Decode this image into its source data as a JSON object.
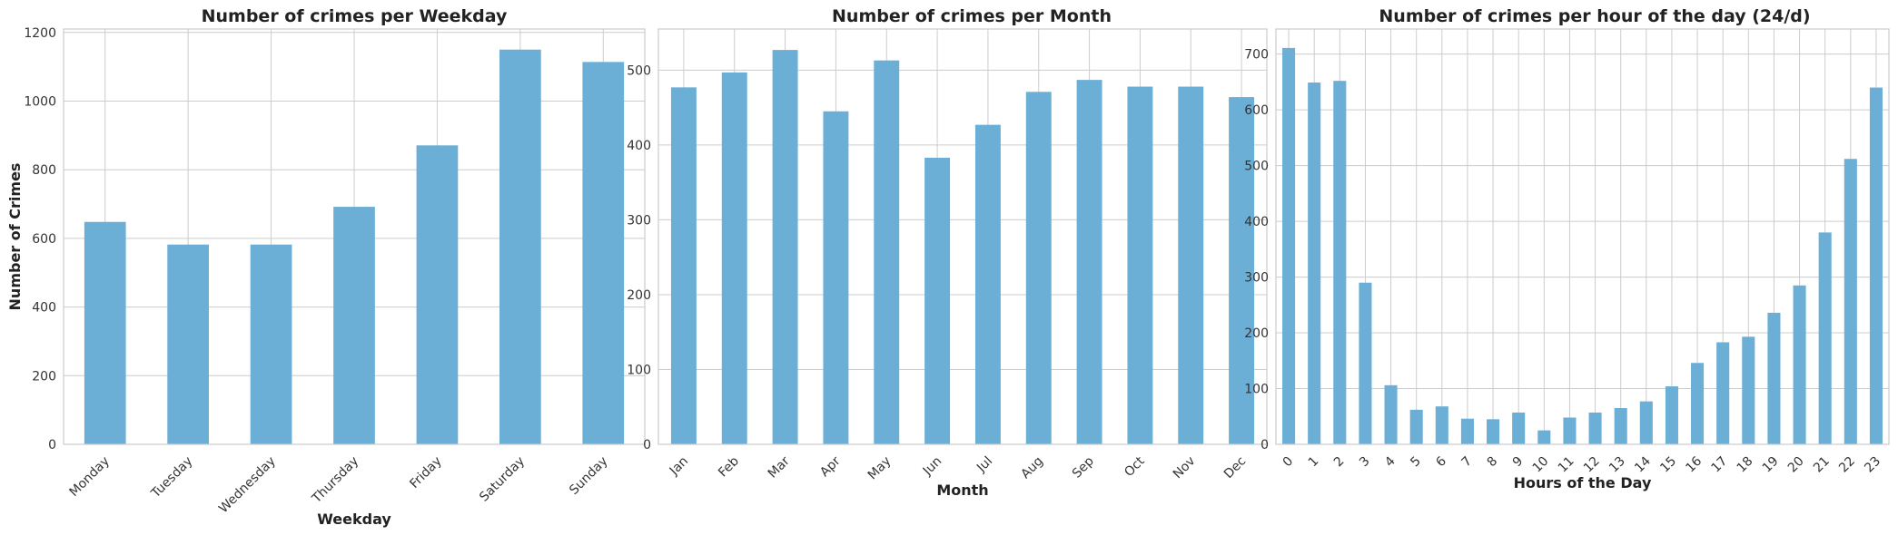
{
  "chart_data": [
    {
      "type": "bar",
      "title": "Number of crimes per Weekday",
      "xlabel": "Weekday",
      "ylabel": "Number of Crimes",
      "categories": [
        "Monday",
        "Tuesday",
        "Wednesday",
        "Thursday",
        "Friday",
        "Saturday",
        "Sunday"
      ],
      "values": [
        648,
        582,
        582,
        692,
        871,
        1150,
        1114
      ],
      "ylim": [
        0,
        1210
      ],
      "yticks": [
        0,
        200,
        400,
        600,
        800,
        1000,
        1200
      ],
      "xtick_rotation": 45,
      "grid": true,
      "bar_color": "#6baed6"
    },
    {
      "type": "bar",
      "title": "Number of crimes per Month",
      "xlabel": "Month",
      "ylabel": "",
      "categories": [
        "Jan",
        "Feb",
        "Mar",
        "Apr",
        "May",
        "Jun",
        "Jul",
        "Aug",
        "Sep",
        "Oct",
        "Nov",
        "Dec"
      ],
      "values": [
        477,
        497,
        527,
        445,
        513,
        383,
        427,
        471,
        487,
        478,
        478,
        464
      ],
      "ylim": [
        0,
        555
      ],
      "yticks": [
        0,
        100,
        200,
        300,
        400,
        500
      ],
      "xtick_rotation": 45,
      "grid": true,
      "bar_color": "#6baed6"
    },
    {
      "type": "bar",
      "title": "Number of crimes per hour of the day (24/d)",
      "xlabel": "Hours of the Day",
      "ylabel": "",
      "categories": [
        "0",
        "1",
        "2",
        "3",
        "4",
        "5",
        "6",
        "7",
        "8",
        "9",
        "10",
        "11",
        "12",
        "13",
        "14",
        "15",
        "16",
        "17",
        "18",
        "19",
        "20",
        "21",
        "22",
        "23"
      ],
      "values": [
        711,
        649,
        652,
        290,
        106,
        62,
        68,
        46,
        45,
        57,
        25,
        48,
        57,
        65,
        77,
        104,
        146,
        183,
        193,
        236,
        285,
        380,
        512,
        640
      ],
      "ylim": [
        0,
        745
      ],
      "yticks": [
        0,
        100,
        200,
        300,
        400,
        500,
        600,
        700
      ],
      "xtick_rotation": 45,
      "grid": true,
      "bar_color": "#6baed6"
    }
  ]
}
